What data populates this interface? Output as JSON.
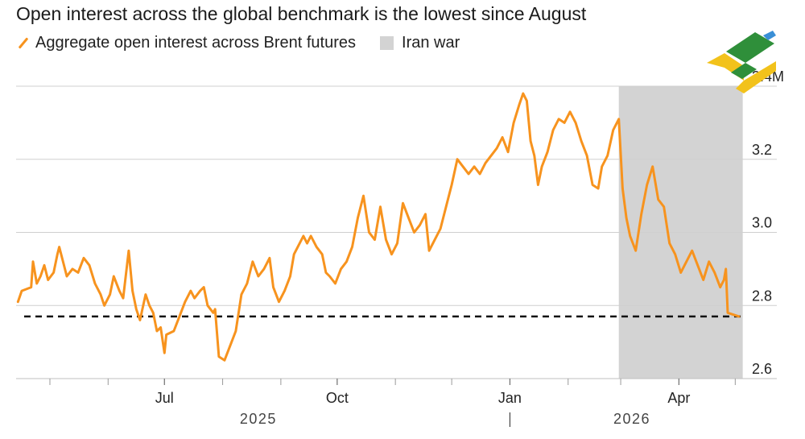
{
  "title": "Open interest across the global benchmark is the lowest since August",
  "legend": {
    "series_label": "Aggregate open interest across Brent futures",
    "shade_label": "Iran war"
  },
  "colors": {
    "series": "#f7931e",
    "shade": "#d3d3d3",
    "grid": "#cfcfcf",
    "dashed": "#111111"
  },
  "chart_data": {
    "type": "line",
    "title": "Open interest across the global benchmark is the lowest since August",
    "ylim": [
      2.6,
      3.4
    ],
    "y_ticks": [
      {
        "value": 2.6,
        "label": "2.6"
      },
      {
        "value": 2.8,
        "label": "2.8"
      },
      {
        "value": 3.0,
        "label": "3.0"
      },
      {
        "value": 3.2,
        "label": "3.2"
      },
      {
        "value": 3.4,
        "label": "3.4M"
      }
    ],
    "xlim": [
      "2025-04-13",
      "2026-05-06"
    ],
    "x_ticks": [
      {
        "date": "2025-07-01",
        "label": "Jul"
      },
      {
        "date": "2025-10-01",
        "label": "Oct"
      },
      {
        "date": "2026-01-01",
        "label": "Jan"
      },
      {
        "date": "2026-04-01",
        "label": "Apr"
      }
    ],
    "minor_x_ticks": [
      "2025-05-01",
      "2025-06-01",
      "2025-08-01",
      "2025-09-01",
      "2025-11-01",
      "2025-12-01",
      "2026-02-01",
      "2026-03-01",
      "2026-05-01"
    ],
    "year_labels": [
      {
        "label": "2025",
        "date": "2025-08-20"
      },
      {
        "label": "2026",
        "date": "2026-03-07"
      }
    ],
    "year_divider": "2026-01-01",
    "shaded_region": {
      "label": "Iran war",
      "start": "2026-02-28",
      "end": "2026-05-05"
    },
    "reference_line": {
      "value": 2.77,
      "style": "dashed"
    },
    "series": [
      {
        "name": "Aggregate open interest across Brent futures",
        "points": [
          [
            "2025-04-14",
            2.81
          ],
          [
            "2025-04-16",
            2.84
          ],
          [
            "2025-04-21",
            2.85
          ],
          [
            "2025-04-22",
            2.92
          ],
          [
            "2025-04-24",
            2.86
          ],
          [
            "2025-04-26",
            2.88
          ],
          [
            "2025-04-28",
            2.91
          ],
          [
            "2025-04-30",
            2.87
          ],
          [
            "2025-05-03",
            2.89
          ],
          [
            "2025-05-05",
            2.94
          ],
          [
            "2025-05-06",
            2.96
          ],
          [
            "2025-05-08",
            2.92
          ],
          [
            "2025-05-10",
            2.88
          ],
          [
            "2025-05-13",
            2.9
          ],
          [
            "2025-05-16",
            2.89
          ],
          [
            "2025-05-19",
            2.93
          ],
          [
            "2025-05-22",
            2.91
          ],
          [
            "2025-05-25",
            2.86
          ],
          [
            "2025-05-28",
            2.83
          ],
          [
            "2025-05-30",
            2.8
          ],
          [
            "2025-06-02",
            2.83
          ],
          [
            "2025-06-04",
            2.88
          ],
          [
            "2025-06-07",
            2.84
          ],
          [
            "2025-06-09",
            2.82
          ],
          [
            "2025-06-12",
            2.95
          ],
          [
            "2025-06-14",
            2.84
          ],
          [
            "2025-06-16",
            2.79
          ],
          [
            "2025-06-18",
            2.76
          ],
          [
            "2025-06-21",
            2.83
          ],
          [
            "2025-06-23",
            2.8
          ],
          [
            "2025-06-25",
            2.78
          ],
          [
            "2025-06-27",
            2.73
          ],
          [
            "2025-06-29",
            2.74
          ],
          [
            "2025-07-01",
            2.67
          ],
          [
            "2025-07-02",
            2.72
          ],
          [
            "2025-07-06",
            2.73
          ],
          [
            "2025-07-09",
            2.77
          ],
          [
            "2025-07-12",
            2.81
          ],
          [
            "2025-07-15",
            2.84
          ],
          [
            "2025-07-17",
            2.82
          ],
          [
            "2025-07-20",
            2.84
          ],
          [
            "2025-07-22",
            2.85
          ],
          [
            "2025-07-24",
            2.8
          ],
          [
            "2025-07-27",
            2.78
          ],
          [
            "2025-07-28",
            2.79
          ],
          [
            "2025-07-30",
            2.66
          ],
          [
            "2025-08-02",
            2.65
          ],
          [
            "2025-08-05",
            2.69
          ],
          [
            "2025-08-08",
            2.73
          ],
          [
            "2025-08-11",
            2.83
          ],
          [
            "2025-08-14",
            2.86
          ],
          [
            "2025-08-17",
            2.92
          ],
          [
            "2025-08-20",
            2.88
          ],
          [
            "2025-08-23",
            2.9
          ],
          [
            "2025-08-26",
            2.93
          ],
          [
            "2025-08-28",
            2.85
          ],
          [
            "2025-08-31",
            2.81
          ],
          [
            "2025-09-03",
            2.84
          ],
          [
            "2025-09-06",
            2.88
          ],
          [
            "2025-09-08",
            2.94
          ],
          [
            "2025-09-10",
            2.96
          ],
          [
            "2025-09-13",
            2.99
          ],
          [
            "2025-09-15",
            2.97
          ],
          [
            "2025-09-17",
            2.99
          ],
          [
            "2025-09-20",
            2.96
          ],
          [
            "2025-09-23",
            2.94
          ],
          [
            "2025-09-25",
            2.89
          ],
          [
            "2025-09-27",
            2.88
          ],
          [
            "2025-09-30",
            2.86
          ],
          [
            "2025-10-03",
            2.9
          ],
          [
            "2025-10-06",
            2.92
          ],
          [
            "2025-10-09",
            2.96
          ],
          [
            "2025-10-12",
            3.04
          ],
          [
            "2025-10-15",
            3.1
          ],
          [
            "2025-10-18",
            3.0
          ],
          [
            "2025-10-21",
            2.98
          ],
          [
            "2025-10-24",
            3.07
          ],
          [
            "2025-10-27",
            2.98
          ],
          [
            "2025-10-30",
            2.94
          ],
          [
            "2025-11-02",
            2.97
          ],
          [
            "2025-11-05",
            3.08
          ],
          [
            "2025-11-08",
            3.04
          ],
          [
            "2025-11-11",
            3.0
          ],
          [
            "2025-11-14",
            3.02
          ],
          [
            "2025-11-17",
            3.05
          ],
          [
            "2025-11-19",
            2.95
          ],
          [
            "2025-11-22",
            2.98
          ],
          [
            "2025-11-25",
            3.01
          ],
          [
            "2025-11-28",
            3.07
          ],
          [
            "2025-12-01",
            3.13
          ],
          [
            "2025-12-04",
            3.2
          ],
          [
            "2025-12-07",
            3.18
          ],
          [
            "2025-12-10",
            3.16
          ],
          [
            "2025-12-13",
            3.18
          ],
          [
            "2025-12-16",
            3.16
          ],
          [
            "2025-12-19",
            3.19
          ],
          [
            "2025-12-22",
            3.21
          ],
          [
            "2025-12-25",
            3.23
          ],
          [
            "2025-12-28",
            3.26
          ],
          [
            "2025-12-31",
            3.22
          ],
          [
            "2026-01-03",
            3.3
          ],
          [
            "2026-01-06",
            3.35
          ],
          [
            "2026-01-08",
            3.38
          ],
          [
            "2026-01-10",
            3.36
          ],
          [
            "2026-01-12",
            3.25
          ],
          [
            "2026-01-14",
            3.21
          ],
          [
            "2026-01-16",
            3.13
          ],
          [
            "2026-01-18",
            3.18
          ],
          [
            "2026-01-21",
            3.22
          ],
          [
            "2026-01-24",
            3.28
          ],
          [
            "2026-01-27",
            3.31
          ],
          [
            "2026-01-30",
            3.3
          ],
          [
            "2026-02-02",
            3.33
          ],
          [
            "2026-02-05",
            3.3
          ],
          [
            "2026-02-08",
            3.25
          ],
          [
            "2026-02-11",
            3.21
          ],
          [
            "2026-02-14",
            3.13
          ],
          [
            "2026-02-17",
            3.12
          ],
          [
            "2026-02-19",
            3.18
          ],
          [
            "2026-02-22",
            3.21
          ],
          [
            "2026-02-25",
            3.28
          ],
          [
            "2026-02-28",
            3.31
          ],
          [
            "2026-03-02",
            3.12
          ],
          [
            "2026-03-04",
            3.04
          ],
          [
            "2026-03-06",
            2.99
          ],
          [
            "2026-03-09",
            2.95
          ],
          [
            "2026-03-12",
            3.05
          ],
          [
            "2026-03-15",
            3.13
          ],
          [
            "2026-03-18",
            3.18
          ],
          [
            "2026-03-21",
            3.09
          ],
          [
            "2026-03-24",
            3.07
          ],
          [
            "2026-03-27",
            2.97
          ],
          [
            "2026-03-30",
            2.94
          ],
          [
            "2026-04-02",
            2.89
          ],
          [
            "2026-04-05",
            2.92
          ],
          [
            "2026-04-08",
            2.95
          ],
          [
            "2026-04-11",
            2.91
          ],
          [
            "2026-04-14",
            2.87
          ],
          [
            "2026-04-17",
            2.92
          ],
          [
            "2026-04-20",
            2.89
          ],
          [
            "2026-04-23",
            2.85
          ],
          [
            "2026-04-25",
            2.87
          ],
          [
            "2026-04-26",
            2.9
          ],
          [
            "2026-04-27",
            2.78
          ],
          [
            "2026-05-03",
            2.77
          ]
        ]
      }
    ]
  }
}
